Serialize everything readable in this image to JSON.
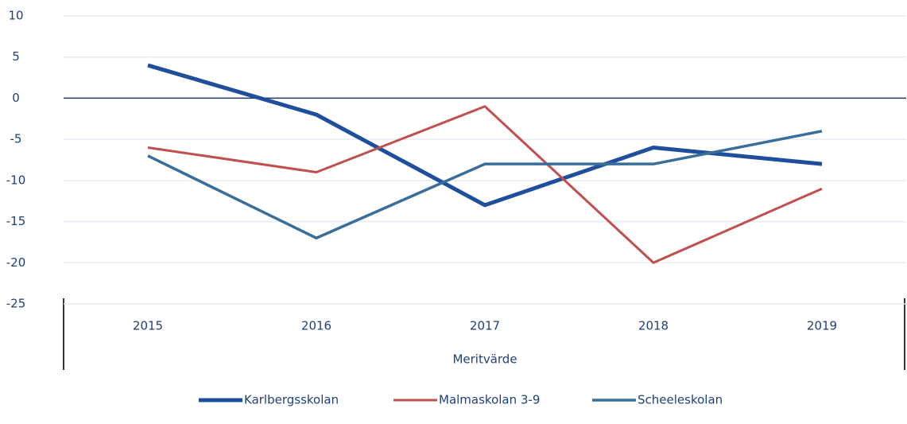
{
  "chart_data": {
    "type": "line",
    "x_label": "Meritvärde",
    "categories": [
      "2015",
      "2016",
      "2017",
      "2018",
      "2019"
    ],
    "series": [
      {
        "name": "Karlbergsskolan",
        "color": "#1f4e9c",
        "width": 5,
        "values": [
          4,
          -2,
          -13,
          -6,
          -8
        ]
      },
      {
        "name": "Malmaskolan 3-9",
        "color": "#c0504d",
        "width": 3,
        "values": [
          -6,
          -9,
          -1,
          -20,
          -11
        ]
      },
      {
        "name": "Scheeleskolan",
        "color": "#3a6e9a",
        "width": 3.5,
        "values": [
          -7,
          -17,
          -8,
          -8,
          -4
        ]
      }
    ],
    "ylim": [
      -25,
      10
    ],
    "yticks": [
      -25,
      -20,
      -15,
      -10,
      -5,
      0,
      5,
      10
    ],
    "grid": true,
    "legend": "bottom"
  }
}
